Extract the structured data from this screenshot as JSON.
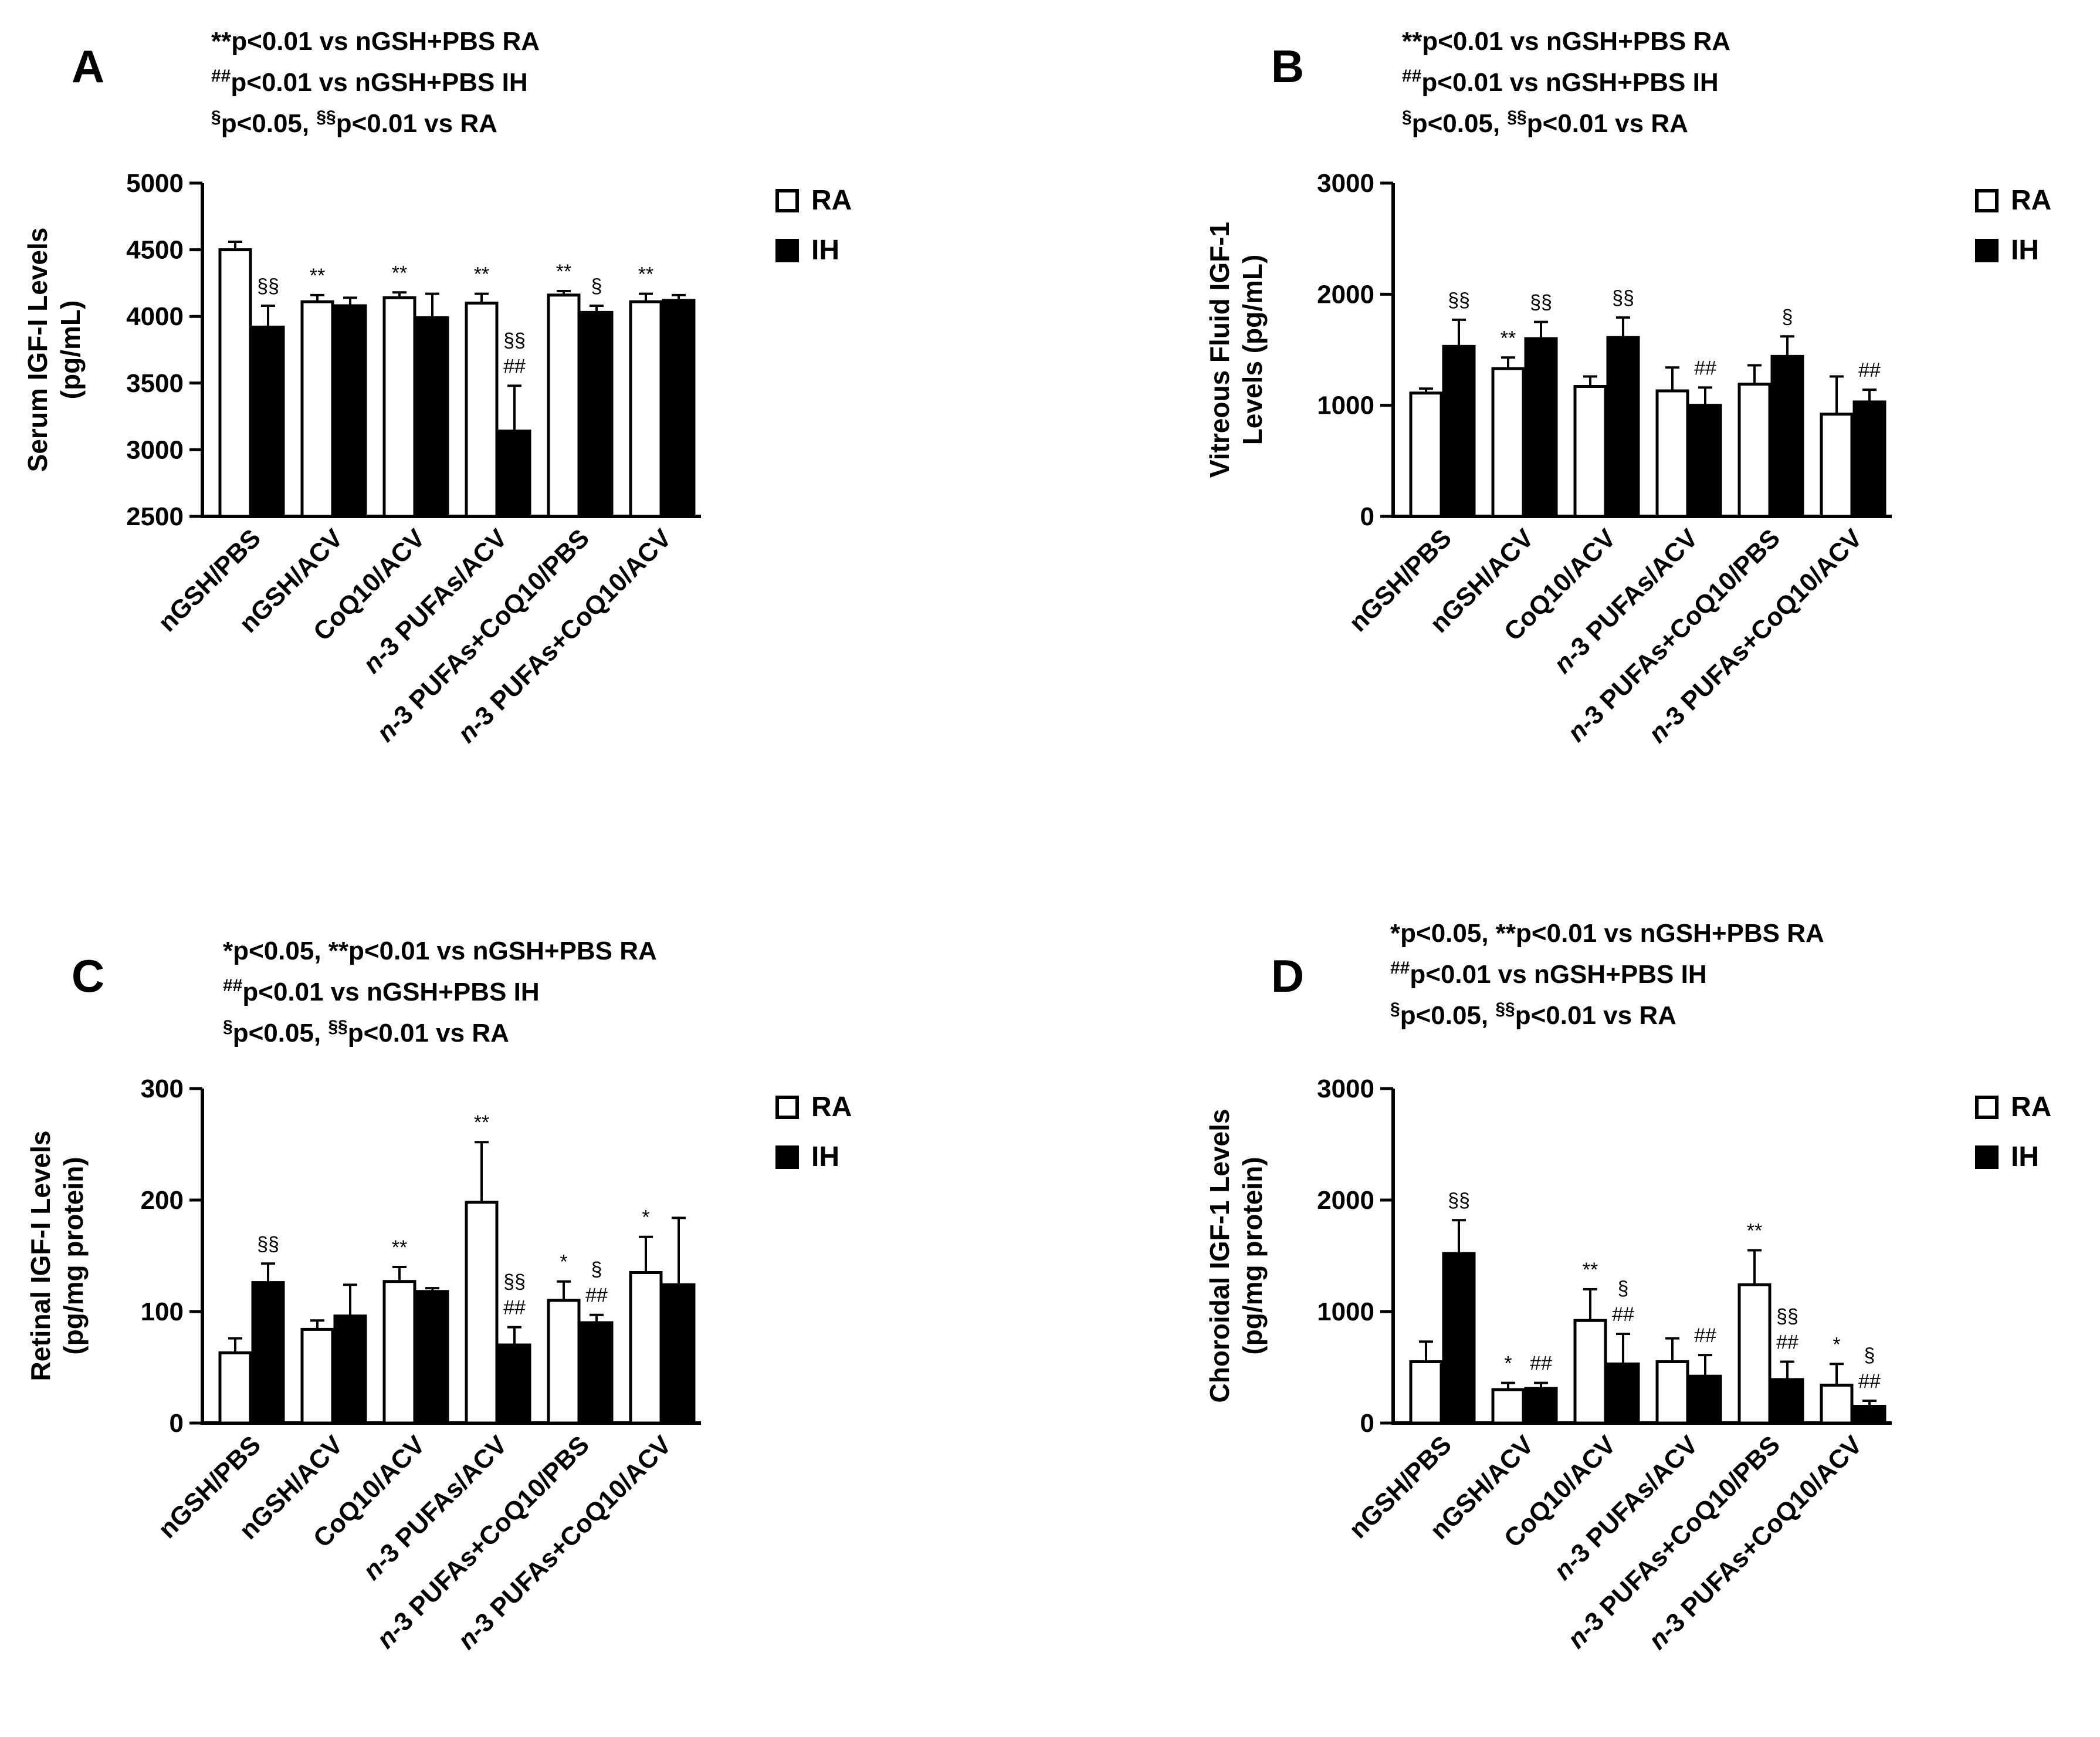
{
  "legend": {
    "open_label": "RA",
    "filled_label": "IH"
  },
  "colors": {
    "axis": "#000000",
    "open_fill": "#ffffff",
    "filled_fill": "#000000"
  },
  "chart_data": [
    {
      "panel": "A",
      "type": "bar",
      "notes": [
        [
          {
            "sup": "",
            "text": "**p<0.01 vs nGSH+PBS RA"
          }
        ],
        [
          {
            "sup": "##",
            "text": "p<0.01 vs nGSH+PBS IH"
          }
        ],
        [
          {
            "sup": "§",
            "text": "p<0.05, "
          },
          {
            "sup": "§§",
            "text": "p<0.01 vs RA"
          }
        ]
      ],
      "ylabel": [
        "Serum IGF-I Levels",
        "(pg/mL)"
      ],
      "ylim": [
        2500,
        5000
      ],
      "yticks": [
        2500,
        3000,
        3500,
        4000,
        4500,
        5000
      ],
      "categories": [
        "nGSH/PBS",
        "nGSH/ACV",
        "CoQ10/ACV",
        "n-3 PUFAs/ACV",
        "n-3 PUFAs+CoQ10/PBS",
        "n-3 PUFAs+CoQ10/ACV"
      ],
      "series": [
        {
          "name": "RA",
          "values": [
            4500,
            4110,
            4140,
            4100,
            4160,
            4110
          ],
          "errors": [
            60,
            50,
            40,
            70,
            30,
            60
          ],
          "marks": [
            [],
            [
              "**"
            ],
            [
              "**"
            ],
            [
              "**"
            ],
            [
              "**"
            ],
            [
              "**"
            ]
          ]
        },
        {
          "name": "IH",
          "values": [
            3920,
            4080,
            3990,
            3140,
            4030,
            4120
          ],
          "errors": [
            160,
            60,
            180,
            340,
            50,
            40
          ],
          "marks": [
            [
              "§§"
            ],
            [],
            [],
            [
              "§§",
              "##"
            ],
            [
              "§"
            ],
            []
          ]
        }
      ]
    },
    {
      "panel": "B",
      "type": "bar",
      "notes": [
        [
          {
            "sup": "",
            "text": "**p<0.01 vs nGSH+PBS RA"
          }
        ],
        [
          {
            "sup": "##",
            "text": "p<0.01 vs nGSH+PBS IH"
          }
        ],
        [
          {
            "sup": "§",
            "text": "p<0.05, "
          },
          {
            "sup": "§§",
            "text": "p<0.01 vs RA"
          }
        ]
      ],
      "ylabel": [
        "Vitreous Fluid IGF-1",
        "Levels (pg/mL)"
      ],
      "ylim": [
        0,
        3000
      ],
      "yticks": [
        0,
        1000,
        2000,
        3000
      ],
      "categories": [
        "nGSH/PBS",
        "nGSH/ACV",
        "CoQ10/ACV",
        "n-3 PUFAs/ACV",
        "n-3 PUFAs+CoQ10/PBS",
        "n-3 PUFAs+CoQ10/ACV"
      ],
      "series": [
        {
          "name": "RA",
          "values": [
            1110,
            1330,
            1170,
            1130,
            1190,
            920
          ],
          "errors": [
            40,
            100,
            90,
            210,
            170,
            340
          ],
          "marks": [
            [],
            [
              "**"
            ],
            [],
            [],
            [],
            []
          ]
        },
        {
          "name": "IH",
          "values": [
            1530,
            1600,
            1610,
            1000,
            1440,
            1030
          ],
          "errors": [
            240,
            150,
            180,
            160,
            180,
            110
          ],
          "marks": [
            [
              "§§"
            ],
            [
              "§§"
            ],
            [
              "§§"
            ],
            [
              "##"
            ],
            [
              "§"
            ],
            [
              "##"
            ]
          ]
        }
      ]
    },
    {
      "panel": "C",
      "type": "bar",
      "notes": [
        [
          {
            "sup": "",
            "text": "*p<0.05, **p<0.01 vs nGSH+PBS RA"
          }
        ],
        [
          {
            "sup": "##",
            "text": "p<0.01 vs nGSH+PBS IH"
          }
        ],
        [
          {
            "sup": "§",
            "text": "p<0.05, "
          },
          {
            "sup": "§§",
            "text": "p<0.01 vs RA"
          }
        ]
      ],
      "ylabel": [
        "Retinal IGF-I Levels",
        "(pg/mg protein)"
      ],
      "ylim": [
        0,
        300
      ],
      "yticks": [
        0,
        100,
        200,
        300
      ],
      "categories": [
        "nGSH/PBS",
        "nGSH/ACV",
        "CoQ10/ACV",
        "n-3 PUFAs/ACV",
        "n-3 PUFAs+CoQ10/PBS",
        "n-3 PUFAs+CoQ10/ACV"
      ],
      "series": [
        {
          "name": "RA",
          "values": [
            63,
            84,
            127,
            198,
            110,
            135
          ],
          "errors": [
            13,
            8,
            13,
            54,
            17,
            32
          ],
          "marks": [
            [],
            [],
            [
              "**"
            ],
            [
              "**"
            ],
            [
              "*"
            ],
            [
              "*"
            ]
          ]
        },
        {
          "name": "IH",
          "values": [
            126,
            96,
            118,
            70,
            90,
            124
          ],
          "errors": [
            17,
            28,
            3,
            16,
            7,
            60
          ],
          "marks": [
            [
              "§§"
            ],
            [],
            [],
            [
              "§§",
              "##"
            ],
            [
              "§",
              "##"
            ],
            []
          ]
        }
      ]
    },
    {
      "panel": "D",
      "type": "bar",
      "notes": [
        [
          {
            "sup": "",
            "text": "*p<0.05, **p<0.01 vs nGSH+PBS RA"
          }
        ],
        [
          {
            "sup": "##",
            "text": "p<0.01 vs nGSH+PBS IH"
          }
        ],
        [
          {
            "sup": "§",
            "text": "p<0.05, "
          },
          {
            "sup": "§§",
            "text": "p<0.01 vs RA"
          }
        ]
      ],
      "ylabel": [
        "Choroidal IGF-1 Levels",
        "(pg/mg protein)"
      ],
      "ylim": [
        0,
        3000
      ],
      "yticks": [
        0,
        1000,
        2000,
        3000
      ],
      "categories": [
        "nGSH/PBS",
        "nGSH/ACV",
        "CoQ10/ACV",
        "n-3 PUFAs/ACV",
        "n-3 PUFAs+CoQ10/PBS",
        "n-3 PUFAs+CoQ10/ACV"
      ],
      "series": [
        {
          "name": "RA",
          "values": [
            550,
            300,
            920,
            550,
            1240,
            340
          ],
          "errors": [
            180,
            60,
            280,
            210,
            310,
            190
          ],
          "marks": [
            [],
            [
              "*"
            ],
            [
              "**"
            ],
            [],
            [
              "**"
            ],
            [
              "*"
            ]
          ]
        },
        {
          "name": "IH",
          "values": [
            1520,
            310,
            530,
            420,
            390,
            150
          ],
          "errors": [
            300,
            50,
            270,
            190,
            160,
            50
          ],
          "marks": [
            [
              "§§"
            ],
            [
              "##"
            ],
            [
              "§",
              "##"
            ],
            [
              "##"
            ],
            [
              "§§",
              "##"
            ],
            [
              "§",
              "##"
            ]
          ]
        }
      ]
    }
  ]
}
